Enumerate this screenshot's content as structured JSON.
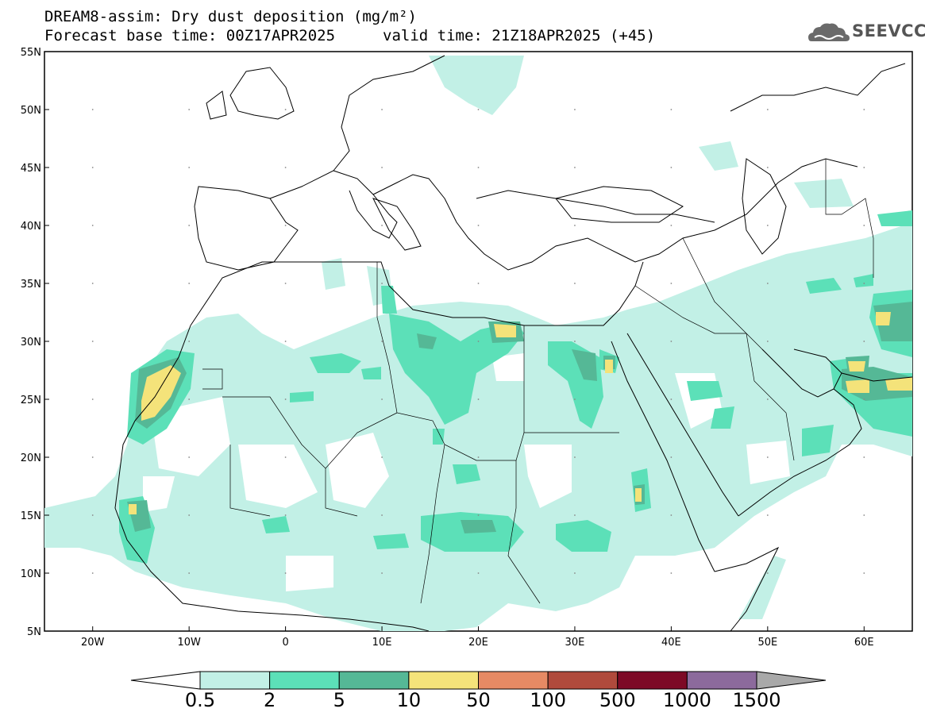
{
  "header": {
    "title": "DREAM8-assim: Dry dust deposition (mg/m²)",
    "base_time": "Forecast base time: 00Z17APR2025",
    "valid_time": "valid time: 21Z18APR2025 (+45)"
  },
  "logo": {
    "name": "cloud-logo-icon",
    "text": "SEEVCCC"
  },
  "axes": {
    "lon_labels": [
      "20W",
      "10W",
      "0",
      "10E",
      "20E",
      "30E",
      "40E",
      "50E",
      "60E"
    ],
    "lat_labels": [
      "55N",
      "50N",
      "45N",
      "40N",
      "35N",
      "30N",
      "25N",
      "20N",
      "15N",
      "10N",
      "5N"
    ],
    "lon_range": [
      -25,
      65
    ],
    "lat_range": [
      5,
      55
    ]
  },
  "colorbar": {
    "labels": [
      "0.5",
      "2",
      "5",
      "10",
      "50",
      "100",
      "500",
      "1000",
      "1500"
    ],
    "colors": [
      "#c2f0e6",
      "#5ce0b8",
      "#55b896",
      "#f4e37a",
      "#e68a64",
      "#b04a3c",
      "#7d0a26",
      "#8c6a9c",
      "#a9a9a9"
    ],
    "under_color": "#ffffff"
  },
  "colors": {
    "level1": "#c2f0e6",
    "level2": "#5ce0b8",
    "level3": "#55b896",
    "level4": "#f4e37a"
  }
}
